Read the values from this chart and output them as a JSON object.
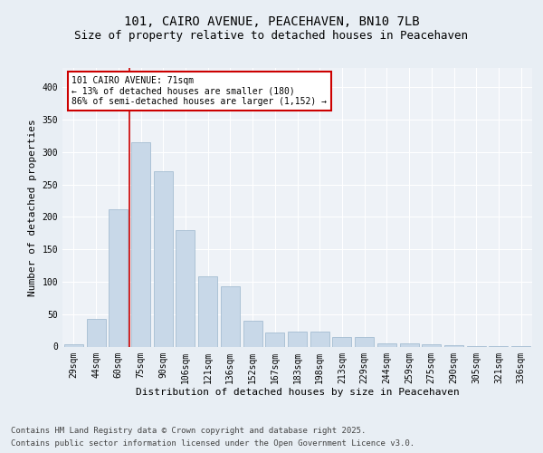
{
  "title1": "101, CAIRO AVENUE, PEACEHAVEN, BN10 7LB",
  "title2": "Size of property relative to detached houses in Peacehaven",
  "xlabel": "Distribution of detached houses by size in Peacehaven",
  "ylabel": "Number of detached properties",
  "categories": [
    "29sqm",
    "44sqm",
    "60sqm",
    "75sqm",
    "90sqm",
    "106sqm",
    "121sqm",
    "136sqm",
    "152sqm",
    "167sqm",
    "183sqm",
    "198sqm",
    "213sqm",
    "229sqm",
    "244sqm",
    "259sqm",
    "275sqm",
    "290sqm",
    "305sqm",
    "321sqm",
    "336sqm"
  ],
  "values": [
    3,
    42,
    212,
    316,
    270,
    179,
    108,
    93,
    40,
    21,
    23,
    23,
    14,
    14,
    5,
    5,
    4,
    2,
    1,
    1,
    1
  ],
  "bar_color": "#c8d8e8",
  "bar_edge_color": "#9ab5cc",
  "vline_x": 2.5,
  "vline_color": "#cc0000",
  "annotation_text": "101 CAIRO AVENUE: 71sqm\n← 13% of detached houses are smaller (180)\n86% of semi-detached houses are larger (1,152) →",
  "annotation_box_color": "#ffffff",
  "annotation_box_edge": "#cc0000",
  "ylim": [
    0,
    430
  ],
  "yticks": [
    0,
    50,
    100,
    150,
    200,
    250,
    300,
    350,
    400
  ],
  "footer1": "Contains HM Land Registry data © Crown copyright and database right 2025.",
  "footer2": "Contains public sector information licensed under the Open Government Licence v3.0.",
  "bg_color": "#e8eef4",
  "plot_bg_color": "#eef2f7",
  "grid_color": "#ffffff",
  "title_fontsize": 10,
  "subtitle_fontsize": 9,
  "axis_label_fontsize": 8,
  "tick_fontsize": 7,
  "annotation_fontsize": 7,
  "footer_fontsize": 6.5
}
